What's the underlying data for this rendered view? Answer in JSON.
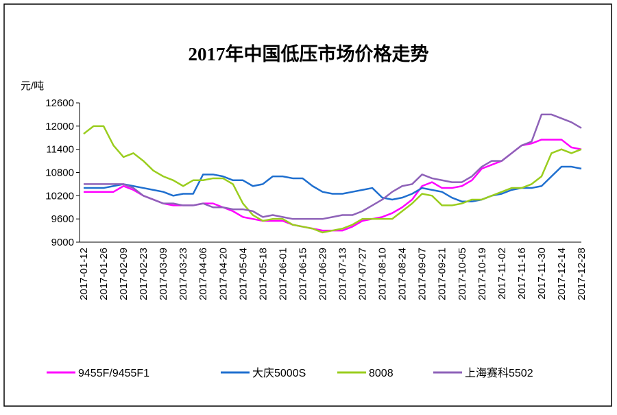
{
  "chart_data": {
    "type": "line",
    "title": "2017年中国低压市场价格走势",
    "y_label": "元/吨",
    "categories": [
      "2017-01-12",
      null,
      "2017-01-26",
      null,
      "2017-02-09",
      null,
      "2017-02-23",
      null,
      "2017-03-09",
      null,
      "2017-03-23",
      null,
      "2017-04-06",
      null,
      "2017-04-20",
      null,
      "2017-05-04",
      null,
      "2017-05-18",
      null,
      "2017-06-01",
      null,
      "2017-06-15",
      null,
      "2017-06-29",
      null,
      "2017-07-13",
      null,
      "2017-07-27",
      null,
      "2017-08-10",
      null,
      "2017-08-24",
      null,
      "2017-09-07",
      null,
      "2017-09-21",
      null,
      "2017-10-05",
      null,
      "2017-10-19",
      null,
      "2017-11-02",
      null,
      "2017-11-16",
      null,
      "2017-11-30",
      null,
      "2017-12-14",
      null,
      "2017-12-28"
    ],
    "series": [
      {
        "name": "9455F/9455F1",
        "color": "#ff00ff",
        "values": [
          10300,
          10300,
          10300,
          10300,
          10450,
          10350,
          10200,
          10100,
          10000,
          9950,
          9950,
          9950,
          10000,
          10000,
          9900,
          9800,
          9650,
          9600,
          9550,
          9550,
          9550,
          9450,
          9400,
          9350,
          9300,
          9300,
          9300,
          9400,
          9550,
          9600,
          9650,
          9750,
          9900,
          10100,
          10450,
          10550,
          10400,
          10400,
          10450,
          10600,
          10900,
          11000,
          11100,
          11300,
          11500,
          11550,
          11650,
          11650,
          11650,
          11450,
          11400
        ]
      },
      {
        "name": "大庆5000S",
        "color": "#1f6fcf",
        "values": [
          10400,
          10400,
          10400,
          10450,
          10500,
          10450,
          10400,
          10350,
          10300,
          10200,
          10250,
          10250,
          10750,
          10750,
          10700,
          10600,
          10600,
          10450,
          10500,
          10700,
          10700,
          10650,
          10650,
          10450,
          10300,
          10250,
          10250,
          10300,
          10350,
          10400,
          10150,
          10100,
          10150,
          10250,
          10400,
          10350,
          10300,
          10150,
          10050,
          10050,
          10100,
          10200,
          10250,
          10350,
          10400,
          10400,
          10450,
          10700,
          10950,
          10950,
          10900
        ]
      },
      {
        "name": "8008",
        "color": "#9acd1e",
        "values": [
          11800,
          12000,
          12000,
          11500,
          11200,
          11300,
          11100,
          10850,
          10700,
          10600,
          10450,
          10600,
          10600,
          10650,
          10650,
          10500,
          10000,
          9700,
          9550,
          9600,
          9600,
          9450,
          9400,
          9350,
          9250,
          9300,
          9350,
          9450,
          9600,
          9600,
          9600,
          9600,
          9800,
          10000,
          10250,
          10200,
          9950,
          9950,
          10000,
          10100,
          10100,
          10200,
          10300,
          10400,
          10400,
          10500,
          10700,
          11300,
          11400,
          11300,
          11400
        ]
      },
      {
        "name": "上海赛科5502",
        "color": "#8e62b8",
        "values": [
          10500,
          10500,
          10500,
          10500,
          10500,
          10400,
          10200,
          10100,
          10000,
          10000,
          9950,
          9950,
          10000,
          9900,
          9900,
          9850,
          9850,
          9800,
          9650,
          9700,
          9650,
          9600,
          9600,
          9600,
          9600,
          9650,
          9700,
          9700,
          9800,
          9950,
          10100,
          10300,
          10450,
          10500,
          10750,
          10650,
          10600,
          10550,
          10550,
          10700,
          10950,
          11100,
          11100,
          11300,
          11500,
          11600,
          12300,
          12300,
          12200,
          12100,
          11950
        ]
      }
    ],
    "ylim": [
      9000,
      12600
    ],
    "yticks": [
      9000,
      9600,
      10200,
      10800,
      11400,
      12000,
      12600
    ]
  }
}
